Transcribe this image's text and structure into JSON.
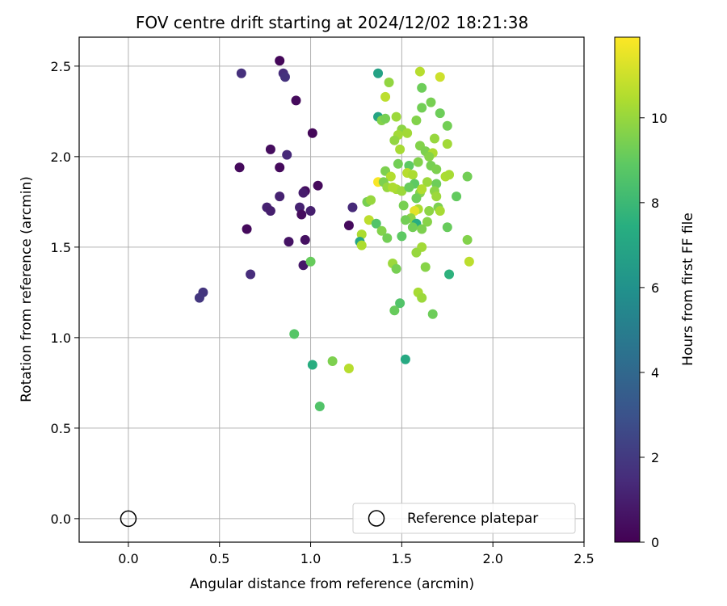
{
  "chart_data": {
    "type": "scatter",
    "title": "FOV centre drift starting at 2024/12/02 18:21:38",
    "xlabel": "Angular distance from reference (arcmin)",
    "ylabel": "Rotation from reference (arcmin)",
    "xlim": [
      -0.27,
      2.5
    ],
    "ylim": [
      -0.13,
      2.66
    ],
    "x_ticks": [
      0.0,
      0.5,
      1.0,
      1.5,
      2.0,
      2.5
    ],
    "y_ticks": [
      0.0,
      0.5,
      1.0,
      1.5,
      2.0,
      2.5
    ],
    "x_tick_labels": [
      "0.0",
      "0.5",
      "1.0",
      "1.5",
      "2.0",
      "2.5"
    ],
    "y_tick_labels": [
      "0.0",
      "0.5",
      "1.0",
      "1.5",
      "2.0",
      "2.5"
    ],
    "grid": true,
    "colorbar": {
      "label": "Hours from first FF file",
      "colormap": "viridis",
      "range": [
        0,
        11.9
      ],
      "ticks": [
        0,
        2,
        4,
        6,
        8,
        10
      ],
      "tick_labels": [
        "0",
        "2",
        "4",
        "6",
        "8",
        "10"
      ]
    },
    "legend": {
      "position": "lower-right",
      "entries": [
        {
          "label": "Reference platepar",
          "marker": "open-circle",
          "x": 0.0,
          "y": 0.0
        }
      ]
    },
    "series": [
      {
        "columns": [
          "x",
          "y",
          "hours"
        ],
        "points": [
          [
            0.83,
            2.53,
            0.2
          ],
          [
            0.62,
            2.46,
            1.6
          ],
          [
            0.85,
            2.46,
            1.5
          ],
          [
            0.86,
            2.44,
            1.7
          ],
          [
            0.92,
            2.31,
            0.3
          ],
          [
            1.01,
            2.13,
            0.2
          ],
          [
            0.78,
            2.04,
            0.4
          ],
          [
            0.87,
            2.01,
            1.4
          ],
          [
            0.61,
            1.94,
            0.3
          ],
          [
            0.83,
            1.94,
            0.3
          ],
          [
            0.97,
            1.81,
            0.4
          ],
          [
            1.04,
            1.84,
            0.3
          ],
          [
            0.96,
            1.8,
            0.9
          ],
          [
            0.83,
            1.78,
            1.1
          ],
          [
            1.23,
            1.72,
            1.4
          ],
          [
            0.76,
            1.72,
            1.1
          ],
          [
            0.78,
            1.7,
            1.0
          ],
          [
            0.94,
            1.72,
            1.1
          ],
          [
            1.0,
            1.7,
            1.0
          ],
          [
            0.95,
            1.68,
            0.4
          ],
          [
            1.21,
            1.62,
            0.3
          ],
          [
            0.65,
            1.6,
            0.3
          ],
          [
            0.97,
            1.54,
            0.5
          ],
          [
            0.88,
            1.53,
            0.6
          ],
          [
            0.96,
            1.4,
            0.8
          ],
          [
            0.67,
            1.35,
            1.5
          ],
          [
            0.41,
            1.25,
            1.8
          ],
          [
            0.39,
            1.22,
            1.9
          ],
          [
            1.37,
            2.46,
            6.8
          ],
          [
            1.6,
            2.47,
            10.6
          ],
          [
            1.43,
            2.41,
            9.9
          ],
          [
            1.71,
            2.44,
            11.0
          ],
          [
            1.61,
            2.38,
            9.2
          ],
          [
            1.41,
            2.33,
            10.7
          ],
          [
            1.66,
            2.3,
            9.4
          ],
          [
            1.61,
            2.27,
            9.3
          ],
          [
            1.71,
            2.24,
            9.2
          ],
          [
            1.37,
            2.22,
            6.9
          ],
          [
            1.39,
            2.2,
            9.6
          ],
          [
            1.41,
            2.21,
            9.4
          ],
          [
            1.47,
            2.22,
            10.1
          ],
          [
            1.58,
            2.2,
            9.6
          ],
          [
            1.75,
            2.17,
            9.3
          ],
          [
            1.5,
            2.15,
            9.8
          ],
          [
            1.48,
            2.12,
            10.2
          ],
          [
            1.53,
            2.13,
            10.2
          ],
          [
            1.46,
            2.09,
            9.9
          ],
          [
            1.68,
            2.1,
            10.0
          ],
          [
            1.6,
            2.06,
            9.6
          ],
          [
            1.75,
            2.07,
            10.2
          ],
          [
            1.49,
            2.04,
            10.3
          ],
          [
            1.63,
            2.03,
            9.5
          ],
          [
            1.67,
            2.02,
            10.4
          ],
          [
            1.65,
            2.0,
            9.7
          ],
          [
            1.59,
            1.97,
            9.6
          ],
          [
            1.48,
            1.96,
            9.3
          ],
          [
            1.54,
            1.95,
            8.9
          ],
          [
            1.66,
            1.95,
            9.4
          ],
          [
            1.69,
            1.93,
            9.5
          ],
          [
            1.41,
            1.92,
            9.5
          ],
          [
            1.53,
            1.91,
            10.6
          ],
          [
            1.56,
            1.9,
            10.4
          ],
          [
            1.44,
            1.89,
            10.5
          ],
          [
            1.74,
            1.89,
            10.4
          ],
          [
            1.76,
            1.9,
            10.3
          ],
          [
            1.86,
            1.89,
            9.3
          ],
          [
            1.37,
            1.86,
            11.8
          ],
          [
            1.4,
            1.86,
            9.5
          ],
          [
            1.57,
            1.85,
            8.9
          ],
          [
            1.64,
            1.86,
            10.1
          ],
          [
            1.69,
            1.85,
            9.2
          ],
          [
            1.42,
            1.83,
            10.0
          ],
          [
            1.47,
            1.82,
            10.3
          ],
          [
            1.5,
            1.81,
            10.1
          ],
          [
            1.45,
            1.83,
            10.4
          ],
          [
            1.54,
            1.83,
            9.1
          ],
          [
            1.6,
            1.8,
            9.7
          ],
          [
            1.61,
            1.82,
            10.5
          ],
          [
            1.68,
            1.81,
            9.8
          ],
          [
            1.58,
            1.77,
            9.2
          ],
          [
            1.69,
            1.78,
            10.1
          ],
          [
            1.8,
            1.78,
            9.0
          ],
          [
            1.31,
            1.75,
            9.4
          ],
          [
            1.33,
            1.76,
            10.0
          ],
          [
            1.51,
            1.73,
            9.4
          ],
          [
            1.59,
            1.71,
            10.4
          ],
          [
            1.65,
            1.7,
            9.8
          ],
          [
            1.57,
            1.7,
            11.4
          ],
          [
            1.7,
            1.72,
            9.5
          ],
          [
            1.71,
            1.7,
            10.3
          ],
          [
            1.55,
            1.66,
            9.8
          ],
          [
            1.52,
            1.65,
            9.3
          ],
          [
            1.32,
            1.65,
            10.7
          ],
          [
            1.64,
            1.64,
            9.7
          ],
          [
            1.58,
            1.63,
            7.4
          ],
          [
            1.36,
            1.63,
            8.6
          ],
          [
            1.56,
            1.61,
            9.3
          ],
          [
            1.39,
            1.59,
            9.6
          ],
          [
            1.61,
            1.6,
            9.5
          ],
          [
            1.75,
            1.61,
            9.1
          ],
          [
            1.28,
            1.57,
            10.4
          ],
          [
            1.42,
            1.55,
            9.3
          ],
          [
            1.5,
            1.56,
            8.9
          ],
          [
            1.86,
            1.54,
            9.6
          ],
          [
            1.27,
            1.53,
            7.0
          ],
          [
            1.28,
            1.51,
            10.4
          ],
          [
            1.61,
            1.5,
            10.2
          ],
          [
            1.58,
            1.47,
            10.0
          ],
          [
            1.87,
            1.42,
            10.7
          ],
          [
            1.45,
            1.41,
            10.1
          ],
          [
            1.47,
            1.38,
            9.4
          ],
          [
            1.63,
            1.39,
            9.7
          ],
          [
            1.76,
            1.35,
            7.6
          ],
          [
            1.59,
            1.25,
            10.3
          ],
          [
            1.61,
            1.22,
            10.1
          ],
          [
            1.49,
            1.19,
            8.6
          ],
          [
            1.46,
            1.15,
            9.1
          ],
          [
            1.67,
            1.13,
            9.2
          ],
          [
            1.0,
            1.42,
            9.1
          ],
          [
            0.91,
            1.02,
            8.7
          ],
          [
            1.12,
            0.87,
            9.5
          ],
          [
            1.21,
            0.83,
            10.6
          ],
          [
            1.01,
            0.85,
            7.4
          ],
          [
            1.52,
            0.88,
            7.2
          ],
          [
            1.05,
            0.62,
            8.6
          ]
        ]
      }
    ]
  }
}
